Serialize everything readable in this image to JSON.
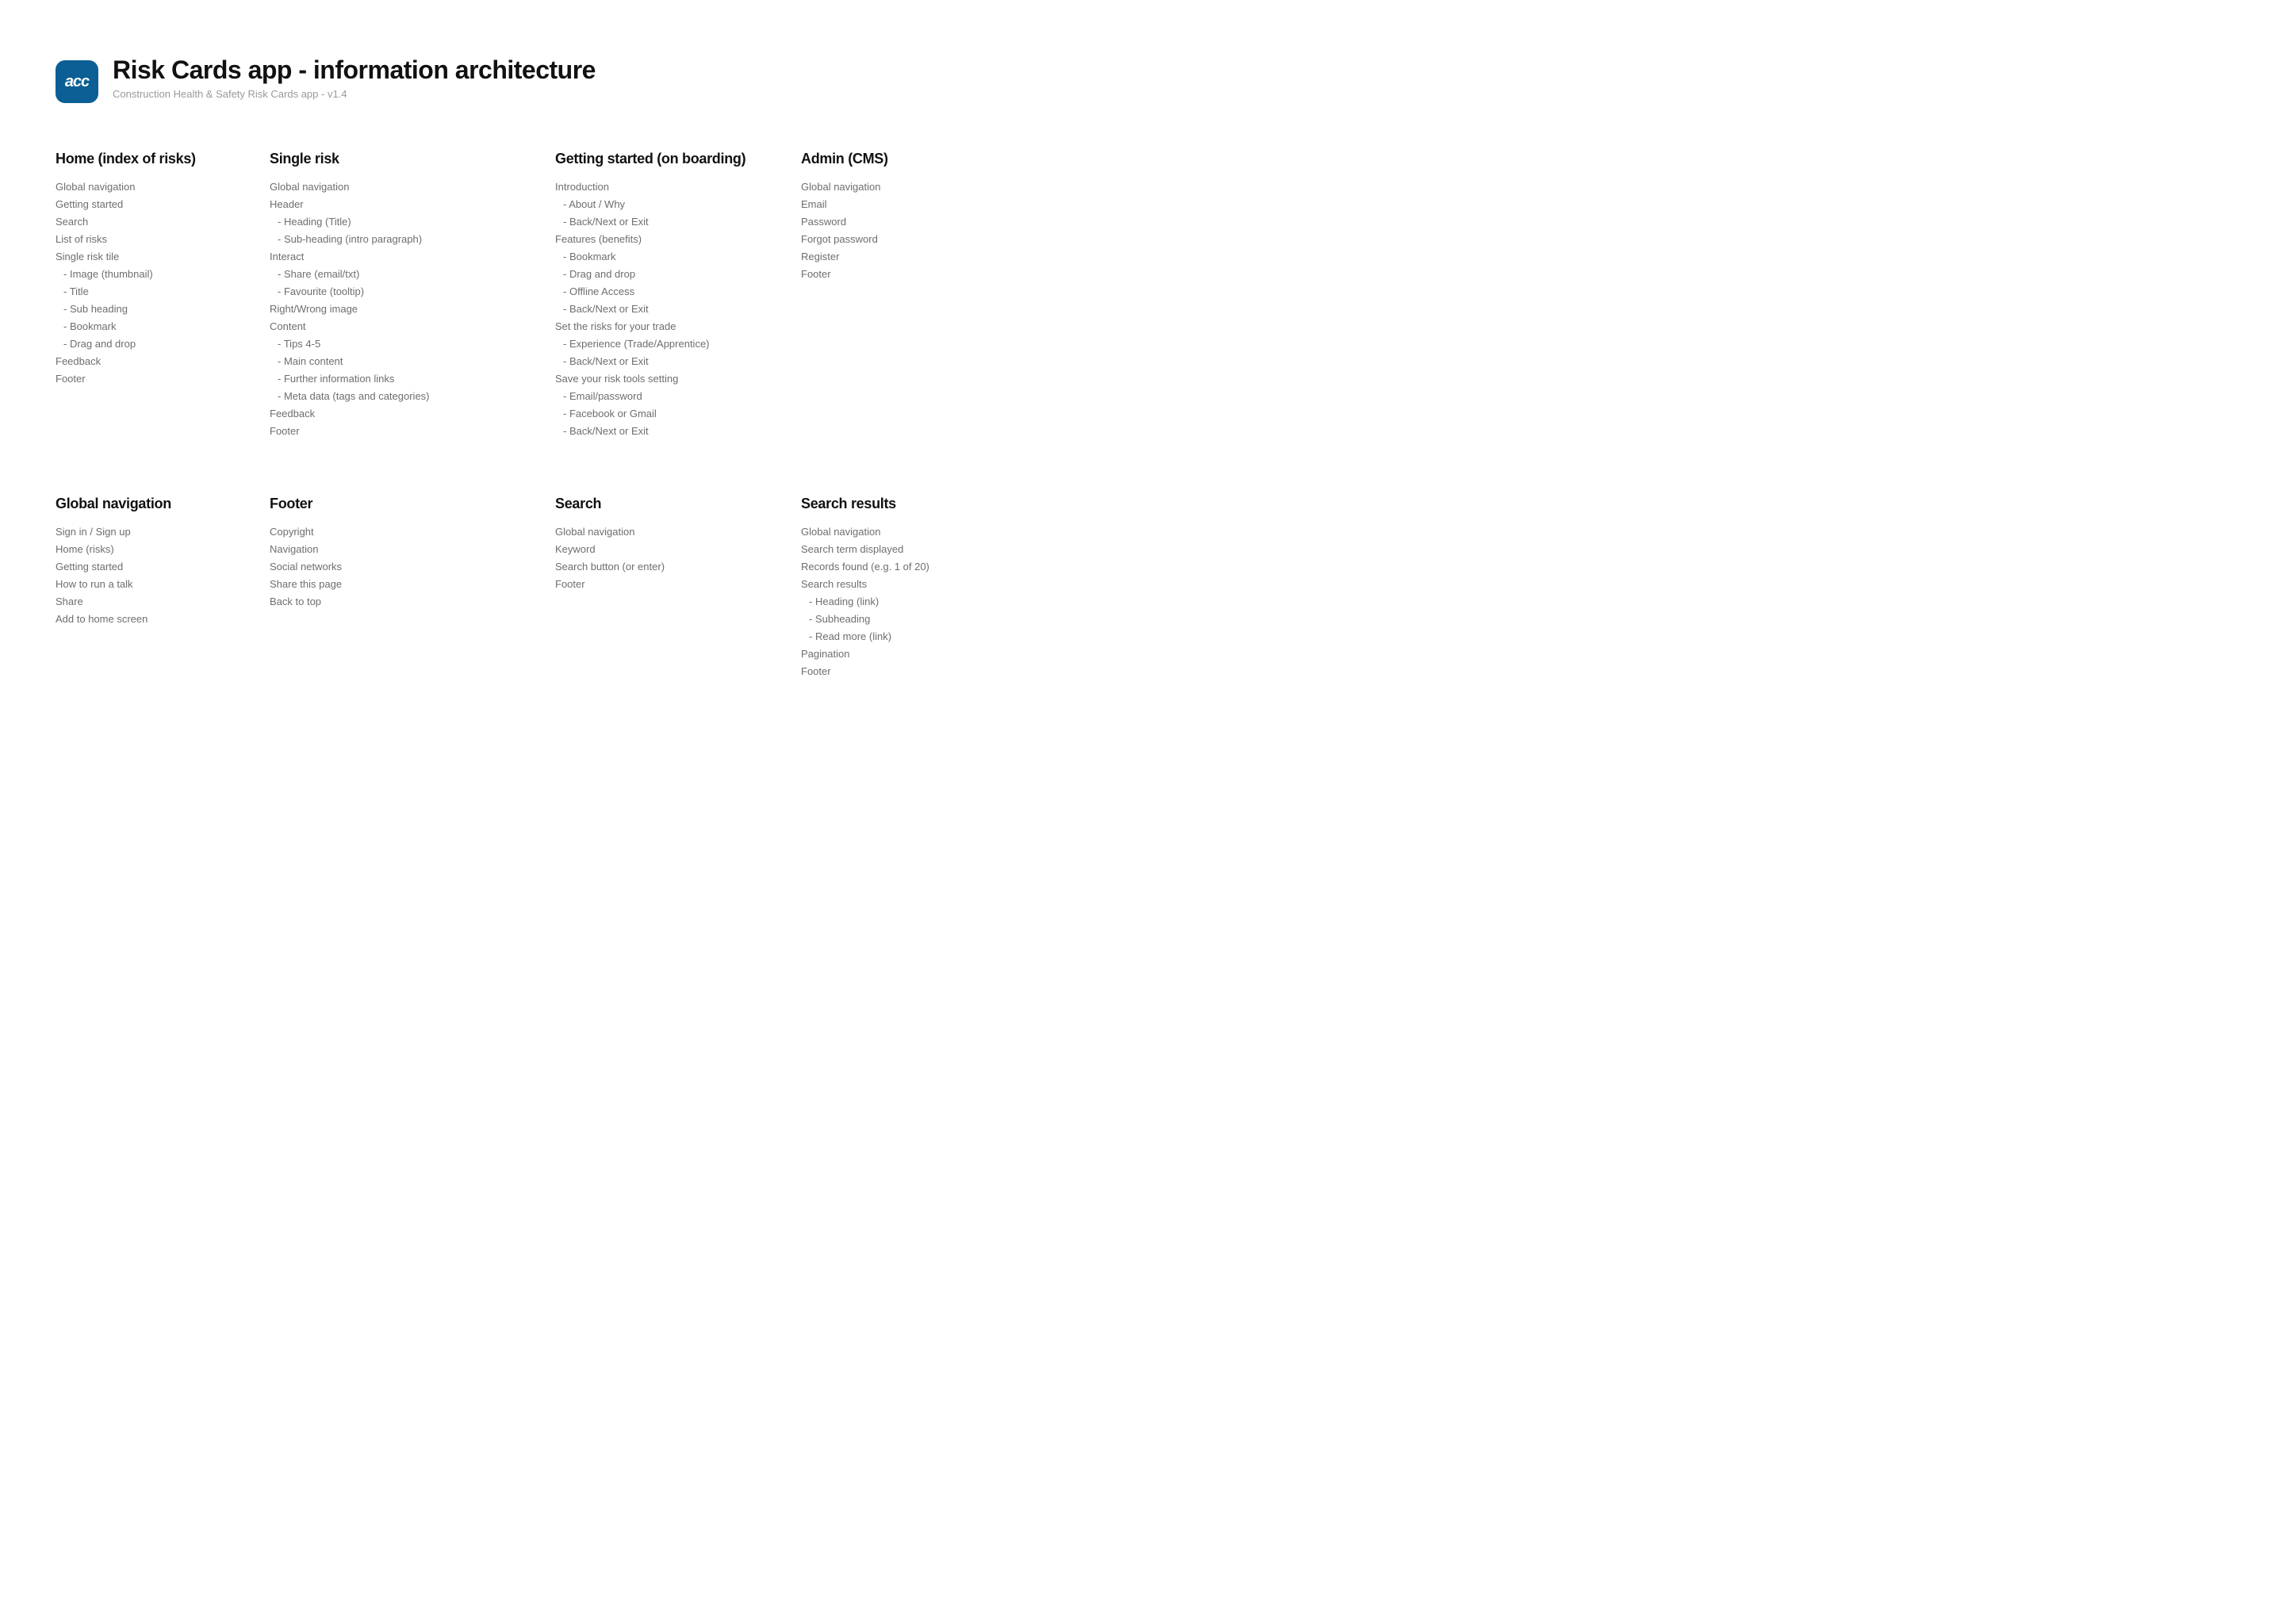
{
  "header": {
    "icon_label": "acc",
    "title": "Risk Cards app - information architecture",
    "subtitle": "Construction Health & Safety Risk Cards app - v1.4"
  },
  "sections": {
    "home": {
      "title": "Home (index of risks)",
      "items": [
        {
          "t": "Global navigation"
        },
        {
          "t": "Getting started"
        },
        {
          "t": "Search"
        },
        {
          "t": "List of risks"
        },
        {
          "t": "Single risk tile"
        },
        {
          "t": "Image (thumbnail)",
          "sub": true
        },
        {
          "t": "Title",
          "sub": true
        },
        {
          "t": "Sub heading",
          "sub": true
        },
        {
          "t": "Bookmark",
          "sub": true
        },
        {
          "t": "Drag and drop",
          "sub": true
        },
        {
          "t": "Feedback"
        },
        {
          "t": "Footer"
        }
      ]
    },
    "single_risk": {
      "title": "Single risk",
      "items": [
        {
          "t": "Global navigation"
        },
        {
          "t": "Header"
        },
        {
          "t": "Heading (Title)",
          "sub": true
        },
        {
          "t": "Sub-heading (intro paragraph)",
          "sub": true
        },
        {
          "t": "Interact"
        },
        {
          "t": "Share (email/txt)",
          "sub": true
        },
        {
          "t": "Favourite (tooltip)",
          "sub": true
        },
        {
          "t": "Right/Wrong image"
        },
        {
          "t": "Content"
        },
        {
          "t": "Tips 4-5",
          "sub": true
        },
        {
          "t": "Main content",
          "sub": true
        },
        {
          "t": "Further information links",
          "sub": true
        },
        {
          "t": "Meta data (tags and categories)",
          "sub": true
        },
        {
          "t": "Feedback"
        },
        {
          "t": "Footer"
        }
      ]
    },
    "getting_started": {
      "title": "Getting started (on boarding)",
      "items": [
        {
          "t": "Introduction"
        },
        {
          "t": "About / Why",
          "sub": true
        },
        {
          "t": "Back/Next or Exit",
          "sub": true
        },
        {
          "t": "Features (benefits)"
        },
        {
          "t": "Bookmark",
          "sub": true
        },
        {
          "t": "Drag and drop",
          "sub": true
        },
        {
          "t": "Offline Access",
          "sub": true
        },
        {
          "t": "Back/Next or Exit",
          "sub": true
        },
        {
          "t": "Set the risks for your trade"
        },
        {
          "t": "Experience (Trade/Apprentice)",
          "sub": true
        },
        {
          "t": "Back/Next or Exit",
          "sub": true
        },
        {
          "t": "Save your risk tools setting"
        },
        {
          "t": "Email/password",
          "sub": true
        },
        {
          "t": "Facebook or Gmail",
          "sub": true
        },
        {
          "t": "Back/Next or Exit",
          "sub": true
        }
      ]
    },
    "admin": {
      "title": "Admin (CMS)",
      "items": [
        {
          "t": "Global navigation"
        },
        {
          "t": "Email"
        },
        {
          "t": "Password"
        },
        {
          "t": "Forgot password"
        },
        {
          "t": "Register"
        },
        {
          "t": "Footer"
        }
      ]
    },
    "global_nav": {
      "title": "Global navigation",
      "items": [
        {
          "t": "Sign in / Sign up"
        },
        {
          "t": "Home (risks)"
        },
        {
          "t": "Getting started"
        },
        {
          "t": "How to run a talk"
        },
        {
          "t": "Share"
        },
        {
          "t": "Add to home screen"
        }
      ]
    },
    "footer": {
      "title": "Footer",
      "items": [
        {
          "t": "Copyright"
        },
        {
          "t": "Navigation"
        },
        {
          "t": "Social networks"
        },
        {
          "t": "Share this page"
        },
        {
          "t": "Back to top"
        }
      ]
    },
    "search": {
      "title": "Search",
      "items": [
        {
          "t": "Global navigation"
        },
        {
          "t": "Keyword"
        },
        {
          "t": "Search button (or enter)"
        },
        {
          "t": "Footer"
        }
      ]
    },
    "search_results": {
      "title": "Search results",
      "items": [
        {
          "t": "Global navigation"
        },
        {
          "t": "Search term displayed"
        },
        {
          "t": "Records found (e.g. 1 of 20)"
        },
        {
          "t": "Search results"
        },
        {
          "t": "Heading (link)",
          "sub": true
        },
        {
          "t": "Subheading",
          "sub": true
        },
        {
          "t": "Read more (link)",
          "sub": true
        },
        {
          "t": "Pagination"
        },
        {
          "t": "Footer"
        }
      ]
    }
  },
  "style": {
    "icon_bg": "#0b5f94",
    "icon_fg": "#ffffff",
    "title_color": "#111111",
    "subtitle_color": "#9a9a9a",
    "item_color": "#6e6e6e",
    "background": "#ffffff"
  }
}
